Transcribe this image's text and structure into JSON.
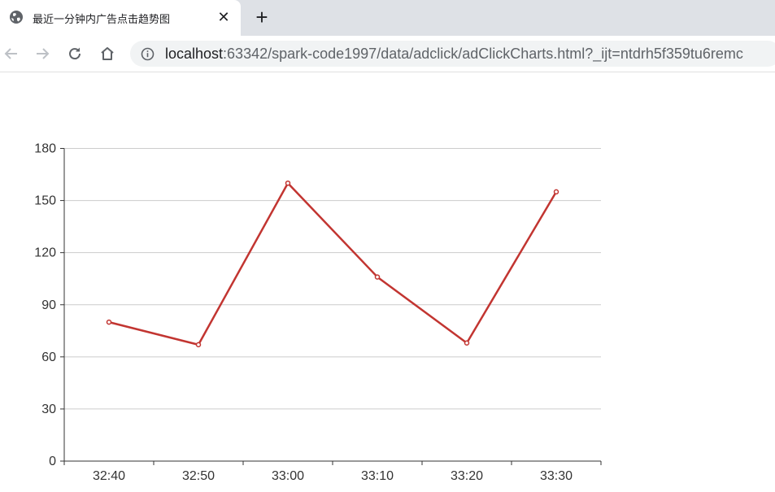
{
  "browser": {
    "tab_title": "最近一分钟内广告点击趋势图",
    "tab_close_glyph": "✕",
    "new_tab_glyph": "+",
    "url_host": "localhost",
    "url_rest": ":63342/spark-code1997/data/adclick/adClickCharts.html?_ijt=ntdrh5f359tu6remc",
    "icons": [
      "globe-icon",
      "close-icon",
      "plus-icon",
      "back-arrow-icon",
      "forward-arrow-icon",
      "reload-icon",
      "home-icon",
      "info-icon"
    ]
  },
  "chart_data": {
    "type": "line",
    "categories": [
      "32:40",
      "32:50",
      "33:00",
      "33:10",
      "33:20",
      "33:30"
    ],
    "values": [
      80,
      67,
      160,
      106,
      68,
      155
    ],
    "ylim": [
      0,
      180
    ],
    "yticks": [
      0,
      30,
      60,
      90,
      120,
      150,
      180
    ],
    "grid": true,
    "title": "",
    "xlabel": "",
    "ylabel": "",
    "line_color": "#c23531",
    "grid_color": "#cccccc",
    "axis_color": "#333333"
  }
}
